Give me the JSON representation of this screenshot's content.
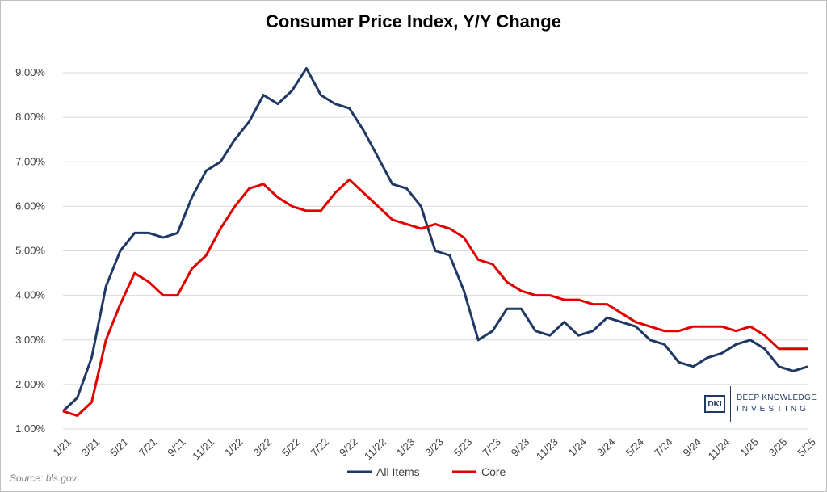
{
  "chart_data": {
    "type": "line",
    "title": "Consumer Price Index, Y/Y Change",
    "xlabel": "",
    "ylabel": "",
    "ylim": [
      1.0,
      9.0
    ],
    "yticks": [
      "1.00%",
      "2.00%",
      "3.00%",
      "4.00%",
      "5.00%",
      "6.00%",
      "7.00%",
      "8.00%",
      "9.00%"
    ],
    "grid": "horizontal",
    "legend": "bottom-center",
    "x": [
      "1/21",
      "2/21",
      "3/21",
      "4/21",
      "5/21",
      "6/21",
      "7/21",
      "8/21",
      "9/21",
      "10/21",
      "11/21",
      "12/21",
      "1/22",
      "2/22",
      "3/22",
      "4/22",
      "5/22",
      "6/22",
      "7/22",
      "8/22",
      "9/22",
      "10/22",
      "11/22",
      "12/22",
      "1/23",
      "2/23",
      "3/23",
      "4/23",
      "5/23",
      "6/23",
      "7/23",
      "8/23",
      "9/23",
      "10/23",
      "11/23",
      "12/23",
      "1/24",
      "2/24",
      "3/24",
      "4/24",
      "5/24",
      "6/24",
      "7/24",
      "8/24",
      "9/24",
      "10/24",
      "11/24",
      "12/24",
      "1/25",
      "2/25",
      "3/25",
      "4/25",
      "5/25"
    ],
    "xtick_labels": [
      "1/21",
      "3/21",
      "5/21",
      "7/21",
      "9/21",
      "11/21",
      "1/22",
      "3/22",
      "5/22",
      "7/22",
      "9/22",
      "11/22",
      "1/23",
      "3/23",
      "5/23",
      "7/23",
      "9/23",
      "11/23",
      "1/24",
      "3/24",
      "5/24",
      "7/24",
      "9/24",
      "11/24",
      "1/25",
      "3/25",
      "5/25"
    ],
    "series": [
      {
        "name": "All Items",
        "color": "#1f3864",
        "values": [
          1.4,
          1.7,
          2.6,
          4.2,
          5.0,
          5.4,
          5.4,
          5.3,
          5.4,
          6.2,
          6.8,
          7.0,
          7.5,
          7.9,
          8.5,
          8.3,
          8.6,
          9.1,
          8.5,
          8.3,
          8.2,
          7.7,
          7.1,
          6.5,
          6.4,
          6.0,
          5.0,
          4.9,
          4.1,
          3.0,
          3.2,
          3.7,
          3.7,
          3.2,
          3.1,
          3.4,
          3.1,
          3.2,
          3.5,
          3.4,
          3.3,
          3.0,
          2.9,
          2.5,
          2.4,
          2.6,
          2.7,
          2.9,
          3.0,
          2.8,
          2.4,
          2.3,
          2.4
        ]
      },
      {
        "name": "Core",
        "color": "#e00000",
        "values": [
          1.4,
          1.3,
          1.6,
          3.0,
          3.8,
          4.5,
          4.3,
          4.0,
          4.0,
          4.6,
          4.9,
          5.5,
          6.0,
          6.4,
          6.5,
          6.2,
          6.0,
          5.9,
          5.9,
          6.3,
          6.6,
          6.3,
          6.0,
          5.7,
          5.6,
          5.5,
          5.6,
          5.5,
          5.3,
          4.8,
          4.7,
          4.3,
          4.1,
          4.0,
          4.0,
          3.9,
          3.9,
          3.8,
          3.8,
          3.6,
          3.4,
          3.3,
          3.2,
          3.2,
          3.3,
          3.3,
          3.3,
          3.2,
          3.3,
          3.1,
          2.8,
          2.8,
          2.8
        ]
      }
    ]
  },
  "source": "Source: bls.gov",
  "logo": {
    "mark": "DKI",
    "line1": "DEEP KNOWLEDGE",
    "line2": "INVESTING"
  }
}
